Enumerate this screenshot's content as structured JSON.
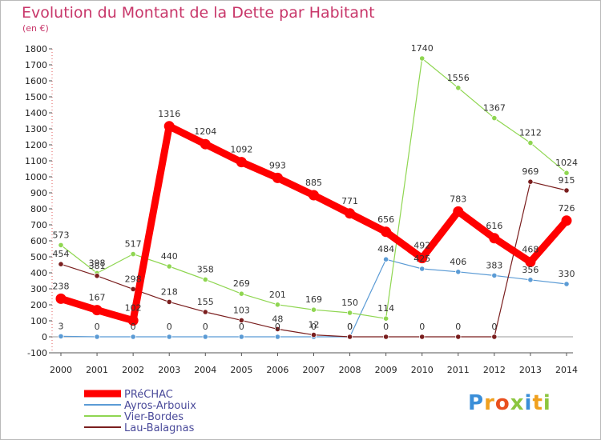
{
  "title": "Evolution du Montant de la Dette par Habitant",
  "subtitle": "(en €)",
  "logo": {
    "text": "Proxiti",
    "letters": [
      {
        "ch": "P",
        "color": "#3a8ed8"
      },
      {
        "ch": "r",
        "color": "#f0a01e"
      },
      {
        "ch": "o",
        "color": "#e94f1e"
      },
      {
        "ch": "x",
        "color": "#8cc63f"
      },
      {
        "ch": "i",
        "color": "#3a8ed8"
      },
      {
        "ch": "t",
        "color": "#f0a01e"
      },
      {
        "ch": "i",
        "color": "#8cc63f"
      }
    ]
  },
  "chart_data": {
    "type": "line",
    "title": "Evolution du Montant de la Dette par Habitant",
    "subtitle": "(en €)",
    "x": [
      "2000",
      "2001",
      "2002",
      "2003",
      "2004",
      "2005",
      "2006",
      "2007",
      "2008",
      "2009",
      "2010",
      "2011",
      "2012",
      "2013",
      "2014"
    ],
    "ylim": [
      -100,
      1800
    ],
    "yticks": [
      -100,
      0,
      100,
      200,
      300,
      400,
      500,
      600,
      700,
      800,
      900,
      1000,
      1100,
      1200,
      1300,
      1400,
      1500,
      1600,
      1700,
      1800
    ],
    "grid": false,
    "legend_position": "bottom-left",
    "series": [
      {
        "name": "PRéCHAC",
        "color": "#ff0000",
        "values": [
          238,
          167,
          102,
          1316,
          1204,
          1092,
          993,
          885,
          771,
          656,
          492,
          783,
          616,
          468,
          726
        ]
      },
      {
        "name": "Ayros-Arbouix",
        "color": "#5b9bd5",
        "values": [
          3,
          0,
          0,
          0,
          0,
          0,
          0,
          0,
          0,
          484,
          425,
          406,
          383,
          356,
          330
        ]
      },
      {
        "name": "Vier-Bordes",
        "color": "#8fd651",
        "values": [
          573,
          398,
          517,
          440,
          358,
          269,
          201,
          169,
          150,
          114,
          1740,
          1556,
          1367,
          1212,
          1024
        ]
      },
      {
        "name": "Lau-Balagnas",
        "color": "#7a1e1e",
        "values": [
          454,
          381,
          298,
          218,
          155,
          103,
          48,
          12,
          0,
          0,
          0,
          0,
          0,
          969,
          915
        ]
      }
    ]
  }
}
